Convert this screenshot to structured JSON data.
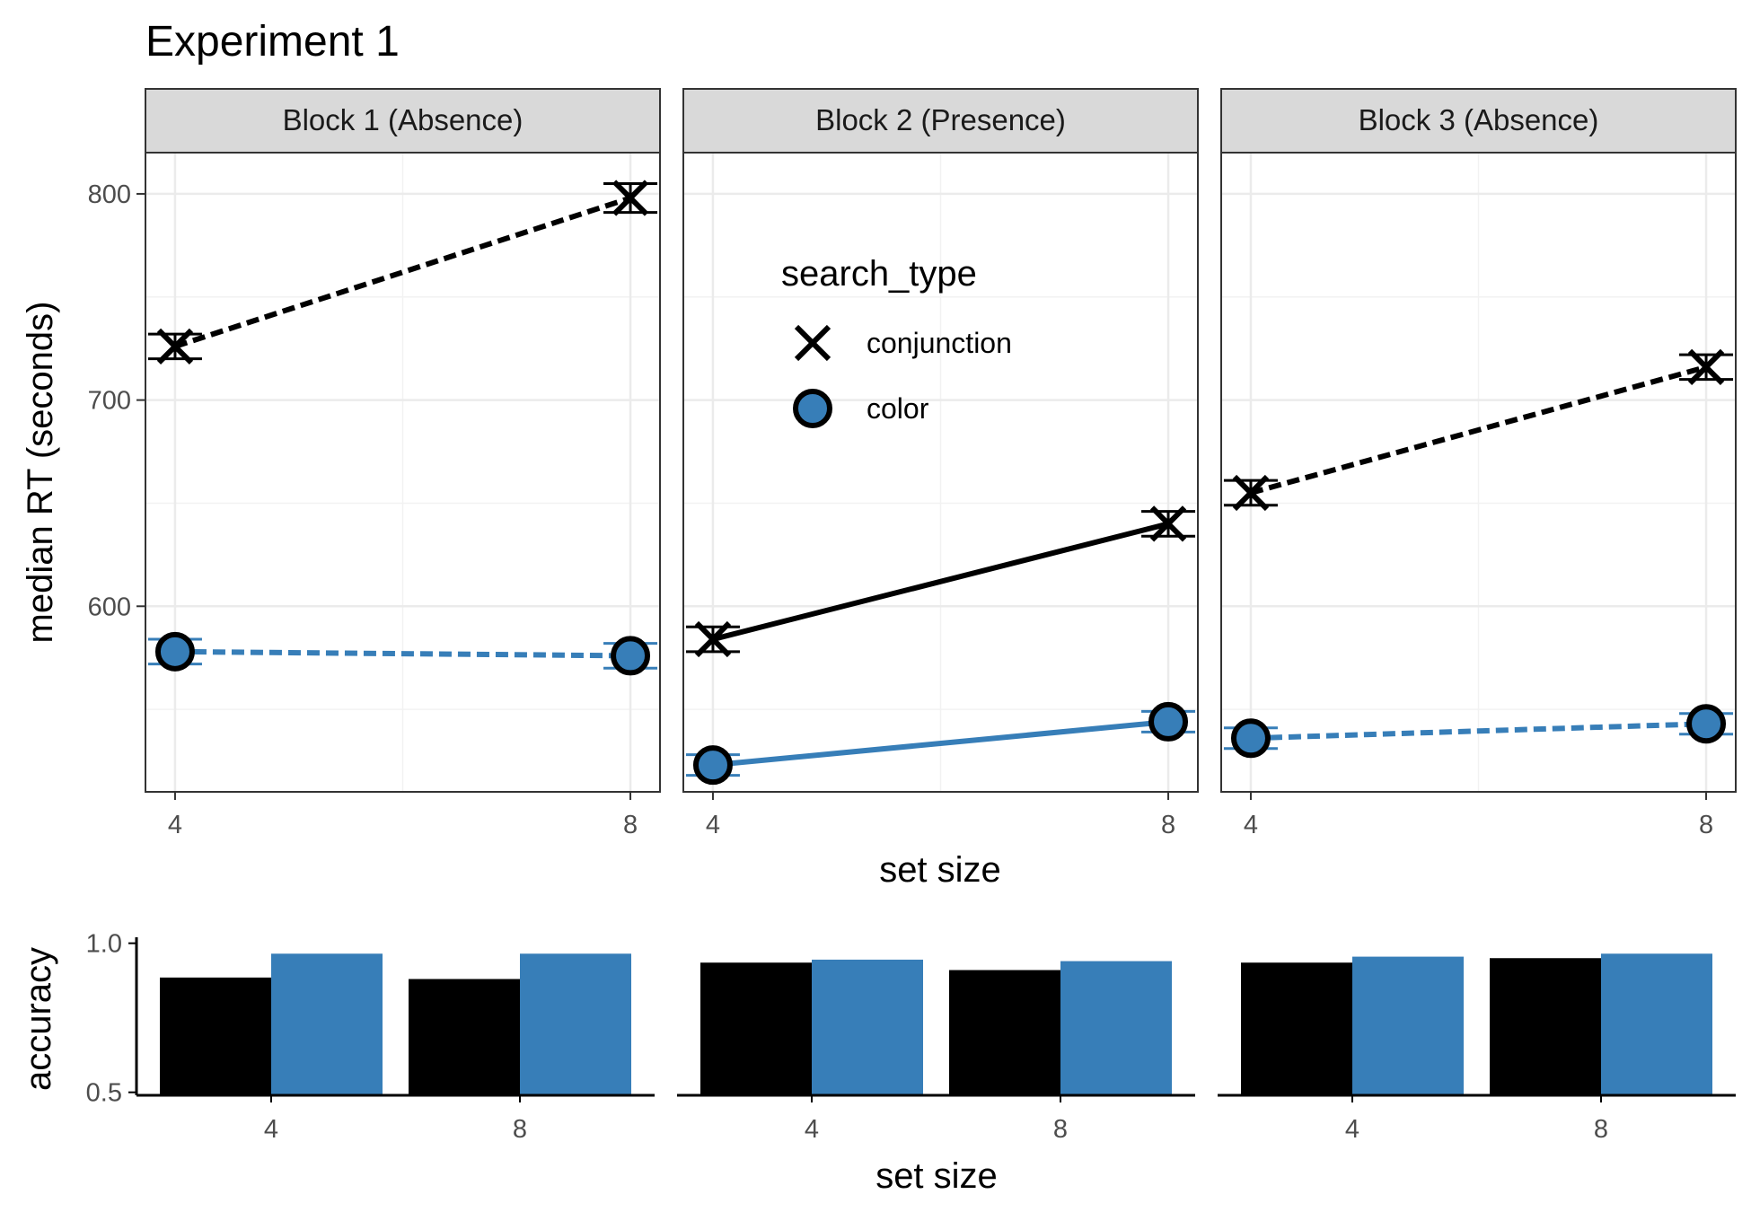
{
  "title": "Experiment 1",
  "legend": {
    "title": "search_type",
    "items": [
      {
        "label": "conjunction",
        "shape": "cross",
        "color": "#000000"
      },
      {
        "label": "color",
        "shape": "circle",
        "color": "#377EB8"
      }
    ]
  },
  "colors": {
    "conjunction": "#000000",
    "color": "#377EB8",
    "strip": "#D9D9D9",
    "grid": "#EBEBEB"
  },
  "chart_data": [
    {
      "type": "line",
      "title": "Experiment 1",
      "xlabel": "set size",
      "ylabel": "median RT (seconds)",
      "x": [
        4,
        8
      ],
      "x_ticks": [
        4,
        8
      ],
      "y_ticks": [
        600,
        700,
        800
      ],
      "ylim": [
        510,
        820
      ],
      "grid": true,
      "legend_position": "inside middle panel, top",
      "panels": [
        {
          "name": "Block 1 (Absence)",
          "series": [
            {
              "name": "conjunction",
              "values": [
                726,
                798
              ],
              "error": [
                6,
                7
              ],
              "line": "dashed"
            },
            {
              "name": "color",
              "values": [
                578,
                576
              ],
              "error": [
                6,
                6
              ],
              "line": "dashed"
            }
          ]
        },
        {
          "name": "Block 2 (Presence)",
          "series": [
            {
              "name": "conjunction",
              "values": [
                584,
                640
              ],
              "error": [
                6,
                6
              ],
              "line": "solid"
            },
            {
              "name": "color",
              "values": [
                523,
                544
              ],
              "error": [
                5,
                5
              ],
              "line": "solid"
            }
          ]
        },
        {
          "name": "Block 3 (Absence)",
          "series": [
            {
              "name": "conjunction",
              "values": [
                655,
                716
              ],
              "error": [
                6,
                6
              ],
              "line": "dashed"
            },
            {
              "name": "color",
              "values": [
                536,
                543
              ],
              "error": [
                5,
                5
              ],
              "line": "dashed"
            }
          ]
        }
      ]
    },
    {
      "type": "bar",
      "xlabel": "set size",
      "ylabel": "accuracy",
      "categories": [
        "4",
        "8"
      ],
      "y_ticks": [
        0.5,
        1.0
      ],
      "y_tick_labels": [
        "0.5",
        "1.0"
      ],
      "ylim": [
        0.49,
        1.02
      ],
      "panels": [
        {
          "name": "Block 1 (Absence)",
          "series": [
            {
              "name": "conjunction",
              "values": [
                0.885,
                0.88
              ]
            },
            {
              "name": "color",
              "values": [
                0.965,
                0.965
              ]
            }
          ]
        },
        {
          "name": "Block 2 (Presence)",
          "series": [
            {
              "name": "conjunction",
              "values": [
                0.935,
                0.91
              ]
            },
            {
              "name": "color",
              "values": [
                0.945,
                0.94
              ]
            }
          ]
        },
        {
          "name": "Block 3 (Absence)",
          "series": [
            {
              "name": "conjunction",
              "values": [
                0.935,
                0.95
              ]
            },
            {
              "name": "color",
              "values": [
                0.955,
                0.965
              ]
            }
          ]
        }
      ]
    }
  ]
}
